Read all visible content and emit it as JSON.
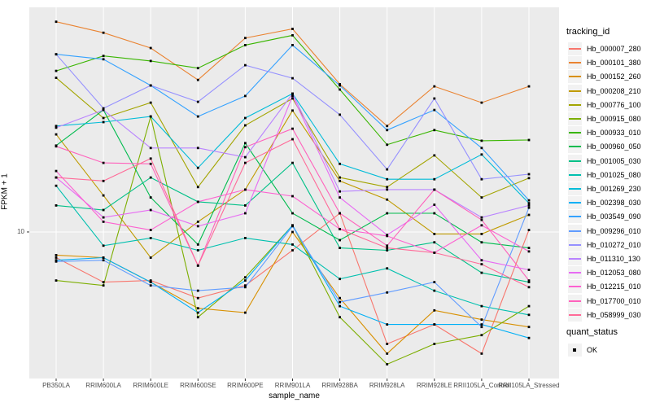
{
  "panel": {
    "bg": "#EBEBEB",
    "grid_color": "#FFFFFF",
    "tick_color": "#333333",
    "point_color": "#000000"
  },
  "y_axis": {
    "label": "FPKM + 1",
    "tick_label": "10"
  },
  "x_axis": {
    "label": "sample_name"
  },
  "legend": {
    "tracking_title": "tracking_id",
    "quant_title": "quant_status",
    "quant_label": "OK"
  },
  "chart_data": {
    "type": "line",
    "title": "",
    "xlabel": "sample_name",
    "ylabel": "FPKM + 1",
    "y_scale": "log10",
    "ylim": [
      2.25,
      98.4
    ],
    "y_ticks": [
      10
    ],
    "grid": "on",
    "legend_position": "right",
    "x_categories": [
      "PB350LA",
      "RRIM600LA",
      "RRIM600LE",
      "RRIM600SE",
      "RRIM600PE",
      "RRIM901LA",
      "RRIM928BA",
      "RRIM928LA",
      "RRIM928LE",
      "RRII105LA_Control",
      "RRII105LA_Stressed"
    ],
    "series": [
      {
        "name": "Hb_000007_280",
        "color": "#F8766D",
        "values": [
          7.7,
          6.0,
          6.1,
          5.1,
          5.8,
          8.3,
          12.1,
          3.2,
          3.9,
          2.9,
          10.2
        ]
      },
      {
        "name": "Hb_000101_380",
        "color": "#EA8331",
        "values": [
          85,
          76,
          65,
          47,
          72,
          79,
          45,
          29.4,
          44,
          37.3,
          44
        ]
      },
      {
        "name": "Hb_000152_260",
        "color": "#D89000",
        "values": [
          7.9,
          7.7,
          6.0,
          4.6,
          4.4,
          10.0,
          5.1,
          2.9,
          4.5,
          4.1,
          3.8
        ]
      },
      {
        "name": "Hb_000208_210",
        "color": "#C09B00",
        "values": [
          27,
          14.5,
          7.7,
          11.1,
          15.4,
          34.4,
          16.8,
          13.9,
          9.8,
          9.8,
          11.9
        ]
      },
      {
        "name": "Hb_000776_100",
        "color": "#A3A500",
        "values": [
          48,
          31.9,
          37.3,
          15.8,
          29.6,
          38.9,
          17.4,
          15.8,
          21.8,
          14.2,
          17.3
        ]
      },
      {
        "name": "Hb_000915_080",
        "color": "#7CAE00",
        "values": [
          6.1,
          5.8,
          32.4,
          4.2,
          6.3,
          10.7,
          4.2,
          2.6,
          3.2,
          3.5,
          4.7
        ]
      },
      {
        "name": "Hb_000933_010",
        "color": "#39B600",
        "values": [
          51.5,
          60,
          57,
          53,
          67,
          74,
          42.6,
          24.3,
          28.2,
          25.3,
          25.5
        ]
      },
      {
        "name": "Hb_000960_050",
        "color": "#00BB4E",
        "values": [
          24.1,
          34.6,
          14.2,
          8.8,
          24.7,
          12.1,
          9.2,
          12.1,
          12.1,
          9.0,
          8.5
        ]
      },
      {
        "name": "Hb_001005_030",
        "color": "#00C087",
        "values": [
          13.1,
          12.5,
          17.4,
          13.6,
          13.1,
          20.2,
          8.5,
          8.3,
          9.0,
          6.6,
          6.0
        ]
      },
      {
        "name": "Hb_001025_080",
        "color": "#00C0AF",
        "values": [
          16,
          8.7,
          9.4,
          8.3,
          9.4,
          8.8,
          6.2,
          6.9,
          5.5,
          4.7,
          4.3
        ]
      },
      {
        "name": "Hb_001269_230",
        "color": "#00BCD8",
        "values": [
          29.4,
          30.6,
          32.4,
          19.2,
          31.9,
          40.9,
          20,
          17.1,
          17.1,
          22,
          13.4
        ]
      },
      {
        "name": "Hb_002398_030",
        "color": "#00B0F6",
        "values": [
          7.5,
          7.7,
          6.0,
          4.4,
          6.1,
          10.7,
          4.7,
          3.9,
          3.9,
          3.9,
          3.4
        ]
      },
      {
        "name": "Hb_003549_090",
        "color": "#35A2FF",
        "values": [
          61,
          58,
          44.4,
          32.4,
          39.9,
          67,
          44.4,
          28.2,
          34.6,
          23.5,
          13.8
        ]
      },
      {
        "name": "Hb_009296_010",
        "color": "#619CFF",
        "values": [
          7.4,
          7.5,
          5.8,
          5.5,
          5.7,
          10.6,
          4.9,
          5.4,
          6.0,
          3.8,
          12.8
        ]
      },
      {
        "name": "Hb_010272_010",
        "color": "#9590FF",
        "values": [
          61,
          35.2,
          44.4,
          37.6,
          54.6,
          47.8,
          33,
          18.9,
          38.9,
          17.1,
          18
        ]
      },
      {
        "name": "Hb_011310_130",
        "color": "#B983FF",
        "values": [
          28.9,
          34.6,
          23.5,
          23.5,
          21.4,
          40.9,
          15.1,
          15.4,
          15.4,
          11.6,
          13.1
        ]
      },
      {
        "name": "Hb_012053_080",
        "color": "#E76BF3",
        "values": [
          17.4,
          11.6,
          12.5,
          10.6,
          12.1,
          39.9,
          14.2,
          9.7,
          13.2,
          7.5,
          6.8
        ]
      },
      {
        "name": "Hb_012215_010",
        "color": "#FD61D1",
        "values": [
          18.6,
          11.1,
          10.2,
          13.6,
          15.4,
          14.4,
          10.3,
          9.6,
          8.1,
          10.7,
          8.2
        ]
      },
      {
        "name": "Hb_017700_010",
        "color": "#FF62BC",
        "values": [
          23.9,
          20.2,
          20,
          7.1,
          23.7,
          28.6,
          12.1,
          8.7,
          15.4,
          11.3,
          6.1
        ]
      },
      {
        "name": "Hb_058999_030",
        "color": "#FF6A98",
        "values": [
          17.4,
          16.8,
          21.1,
          7.1,
          20.2,
          25.7,
          10.3,
          8.5,
          8.1,
          7.2,
          5.7
        ]
      }
    ]
  }
}
